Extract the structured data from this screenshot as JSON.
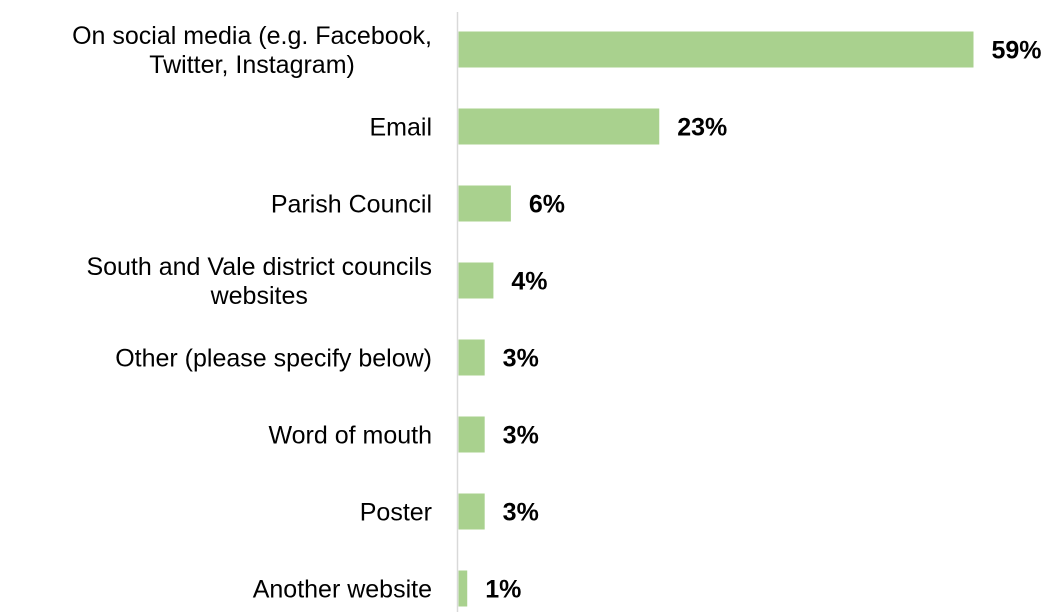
{
  "chart_data": {
    "type": "bar",
    "orientation": "horizontal",
    "categories": [
      "On social media (e.g. Facebook, Twitter, Instagram)",
      "Email",
      "Parish Council",
      "South and Vale district councils websites",
      "Other (please specify below)",
      "Word of mouth",
      "Poster",
      "Another website"
    ],
    "category_lines": [
      [
        "On social media (e.g. Facebook,",
        "Twitter, Instagram)"
      ],
      [
        "Email"
      ],
      [
        "Parish Council"
      ],
      [
        "South and Vale district councils",
        "websites"
      ],
      [
        "Other (please specify below)"
      ],
      [
        "Word of mouth"
      ],
      [
        "Poster"
      ],
      [
        "Another website"
      ]
    ],
    "values": [
      59,
      23,
      6,
      4,
      3,
      3,
      3,
      1
    ],
    "value_labels": [
      "59%",
      "23%",
      "6%",
      "4%",
      "3%",
      "3%",
      "3%",
      "1%"
    ],
    "unit": "%",
    "title": "",
    "xlabel": "",
    "ylabel": "",
    "xlim": [
      0,
      59
    ],
    "grid": false,
    "legend": "none",
    "bar_color": "#a9d18e",
    "axis_color": "#d9d9d9"
  }
}
